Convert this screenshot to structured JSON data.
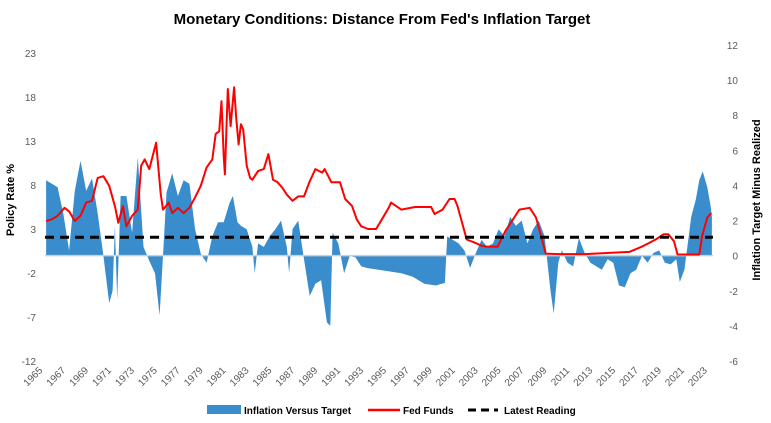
{
  "chart_data": {
    "type": "area+line",
    "title": "Monetary Conditions: Distance From Fed's Inflation Target",
    "ylabel_left": "Policy Rate %",
    "ylabel_right": "Inflation Target Minus Realized",
    "xlim": [
      1964.9,
      2023.2
    ],
    "ylim_left": [
      -12,
      23.9
    ],
    "ylim_right": [
      -6,
      12
    ],
    "left_ticks": [
      "23",
      "18",
      "13",
      "8",
      "3",
      "-2",
      "-7",
      "-12"
    ],
    "left_tick_values": [
      23,
      18,
      13,
      8,
      3,
      -2,
      -7,
      -12
    ],
    "right_ticks": [
      "12",
      "10",
      "8",
      "6",
      "4",
      "2",
      "0",
      "-2",
      "-4",
      "-6"
    ],
    "right_tick_values": [
      12,
      10,
      8,
      6,
      4,
      2,
      0,
      -2,
      -4,
      -6
    ],
    "x_ticks": [
      "1965",
      "1967",
      "1969",
      "1971",
      "1973",
      "1975",
      "1977",
      "1979",
      "1981",
      "1983",
      "1985",
      "1987",
      "1989",
      "1991",
      "1993",
      "1995",
      "1997",
      "1999",
      "2001",
      "2003",
      "2005",
      "2007",
      "2009",
      "2011",
      "2013",
      "2015",
      "2017",
      "2019",
      "2021",
      "2023"
    ],
    "grid": false,
    "legend_position": "bottom",
    "legend": [
      "Inflation Versus Target",
      "Fed Funds",
      "Latest Reading"
    ],
    "colors": {
      "inflation": "#3a8dcd",
      "fed_funds": "#ff0000",
      "latest": "#000000",
      "zero_line": "#d0d0d0"
    },
    "series": [
      {
        "name": "Inflation Versus Target",
        "axis": "right",
        "type": "area",
        "x": [
          1965,
          1965.5,
          1966,
          1966.5,
          1967,
          1967.5,
          1968,
          1968.5,
          1969,
          1969.5,
          1970,
          1970.5,
          1970.8,
          1971,
          1971.2,
          1971.5,
          1972,
          1972.5,
          1973,
          1973.5,
          1974,
          1974.5,
          1974.9,
          1975.2,
          1975.5,
          1976,
          1976.5,
          1977,
          1977.5,
          1978,
          1978.5,
          1979,
          1979.5,
          1980,
          1980.5,
          1981,
          1981.3,
          1981.7,
          1982,
          1982.5,
          1983,
          1983.2,
          1983.5,
          1984,
          1984.5,
          1985,
          1985.5,
          1986,
          1986.2,
          1986.5,
          1987,
          1987.5,
          1988,
          1988.5,
          1989,
          1989.5,
          1989.8,
          1990,
          1990.5,
          1991,
          1991.5,
          1992,
          1992.5,
          1993,
          1994,
          1995,
          1996,
          1997,
          1998,
          1999,
          1999.8,
          2000,
          2000.5,
          2001,
          2001.5,
          2002,
          2002.5,
          2003,
          2003.5,
          2004,
          2004.5,
          2005,
          2005.5,
          2006,
          2006.5,
          2007,
          2007.5,
          2008,
          2008.5,
          2009,
          2009.3,
          2009.7,
          2010,
          2010.5,
          2011,
          2011.5,
          2012,
          2012.5,
          2013,
          2013.5,
          2014,
          2014.5,
          2015,
          2015.5,
          2016,
          2016.5,
          2017,
          2017.5,
          2018,
          2018.5,
          2019,
          2019.5,
          2020,
          2020.3,
          2020.7,
          2021,
          2021.3,
          2021.7,
          2022,
          2022.3,
          2022.7,
          2023,
          2023.1
        ],
        "values": [
          4.3,
          4.1,
          3.9,
          2.4,
          0.3,
          3.7,
          5.4,
          3.7,
          4.4,
          2.4,
          0,
          -2.7,
          -2.0,
          1.7,
          -2.5,
          3.4,
          3.4,
          1.3,
          5.6,
          0.5,
          -0.3,
          -1.0,
          -3.4,
          0,
          3.6,
          4.7,
          3.4,
          4.3,
          4.1,
          1.5,
          0.1,
          -0.4,
          1.1,
          1.9,
          1.9,
          3.0,
          3.4,
          1.9,
          1.7,
          1.5,
          0.5,
          -1.0,
          0.7,
          0.5,
          1.1,
          1.5,
          2.0,
          0.5,
          -1.0,
          1.5,
          2.0,
          -0.2,
          -2.3,
          -1.6,
          -1.4,
          -3.8,
          -4.0,
          1.3,
          0.7,
          -1.0,
          0,
          -0.1,
          -0.6,
          -0.7,
          -0.8,
          -0.9,
          -1.0,
          -1.2,
          -1.6,
          -1.7,
          -1.55,
          1.1,
          0.9,
          0.7,
          0.3,
          -0.7,
          0.15,
          0.9,
          0.5,
          0.7,
          1.5,
          1.1,
          2.2,
          1.7,
          2.0,
          0.7,
          1.5,
          2.0,
          1.1,
          -1.9,
          -3.3,
          -0.4,
          0.3,
          -0.4,
          -0.6,
          1.0,
          0.15,
          -0.4,
          -0.6,
          -0.8,
          -0.2,
          -0.4,
          -1.7,
          -1.8,
          -1.0,
          -0.8,
          0,
          -0.4,
          0.15,
          0.3,
          -0.4,
          -0.5,
          -0.2,
          -1.5,
          -0.8,
          0.7,
          2.2,
          3.2,
          4.3,
          4.8,
          3.9,
          2.8,
          2.2
        ]
      },
      {
        "name": "Fed Funds",
        "axis": "left",
        "type": "line",
        "x": [
          1965,
          1965.5,
          1966,
          1966.6,
          1967,
          1967.5,
          1968,
          1968.5,
          1969,
          1969.5,
          1970,
          1970.5,
          1971,
          1971.3,
          1971.7,
          1972,
          1972.5,
          1973,
          1973.3,
          1973.6,
          1974,
          1974.6,
          1975,
          1975.2,
          1975.7,
          1976,
          1976.5,
          1977,
          1977.5,
          1978,
          1978.5,
          1979,
          1979.5,
          1979.8,
          1980.1,
          1980.3,
          1980.5,
          1980.6,
          1980.85,
          1981.1,
          1981.4,
          1981.6,
          1981.8,
          1982,
          1982.2,
          1982.5,
          1982.8,
          1983,
          1983.5,
          1984,
          1984.4,
          1984.8,
          1985.2,
          1985.6,
          1986,
          1986.5,
          1987,
          1987.5,
          1988,
          1988.5,
          1989.1,
          1989.3,
          1989.9,
          1990.65,
          1991.1,
          1991.7,
          1992.1,
          1992.5,
          1993.1,
          1993.8,
          1994.3,
          1994.9,
          1995.1,
          1996.0,
          1997.2,
          1998.6,
          1998.9,
          1999.6,
          2000.2,
          2000.65,
          2000.9,
          2001.7,
          2002.5,
          2003.0,
          2003.4,
          2004.4,
          2005.1,
          2006.3,
          2007.2,
          2007.75,
          2008.2,
          2008.6,
          2009.7,
          2012,
          2015.9,
          2017.0,
          2018.2,
          2018.9,
          2019.3,
          2019.8,
          2020.1,
          2022.0,
          2022.25,
          2022.7,
          2023.05
        ],
        "values": [
          3.9,
          4.1,
          4.5,
          5.4,
          5.0,
          3.9,
          4.5,
          6.0,
          6.2,
          8.8,
          9.0,
          7.9,
          5.6,
          3.7,
          5.6,
          3.3,
          4.5,
          5.2,
          10.2,
          10.9,
          9.8,
          12.8,
          7.0,
          5.2,
          6.0,
          4.8,
          5.4,
          4.8,
          5.4,
          6.6,
          7.9,
          10.0,
          10.9,
          13.8,
          14.1,
          17.5,
          11.3,
          9.2,
          18.9,
          14.7,
          19.1,
          15.5,
          12.6,
          14.9,
          14.3,
          10.2,
          8.8,
          8.6,
          9.6,
          9.8,
          11.5,
          8.6,
          8.3,
          7.7,
          6.9,
          6.2,
          6.7,
          6.7,
          8.4,
          9.8,
          9.4,
          9.8,
          8.3,
          8.3,
          6.4,
          5.6,
          4.1,
          3.3,
          3.0,
          3.0,
          4.1,
          5.4,
          6.0,
          5.2,
          5.5,
          5.5,
          4.7,
          5.2,
          6.4,
          6.4,
          5.6,
          1.8,
          1.4,
          1.1,
          1.0,
          1.0,
          2.8,
          5.2,
          5.4,
          4.3,
          2.2,
          0.2,
          0.15,
          0.15,
          0.4,
          1.0,
          1.8,
          2.4,
          2.4,
          1.6,
          0.1,
          0.1,
          2.2,
          4.3,
          4.8
        ]
      },
      {
        "name": "Latest Reading",
        "axis": "right",
        "type": "hline",
        "value": 1.05
      }
    ]
  }
}
